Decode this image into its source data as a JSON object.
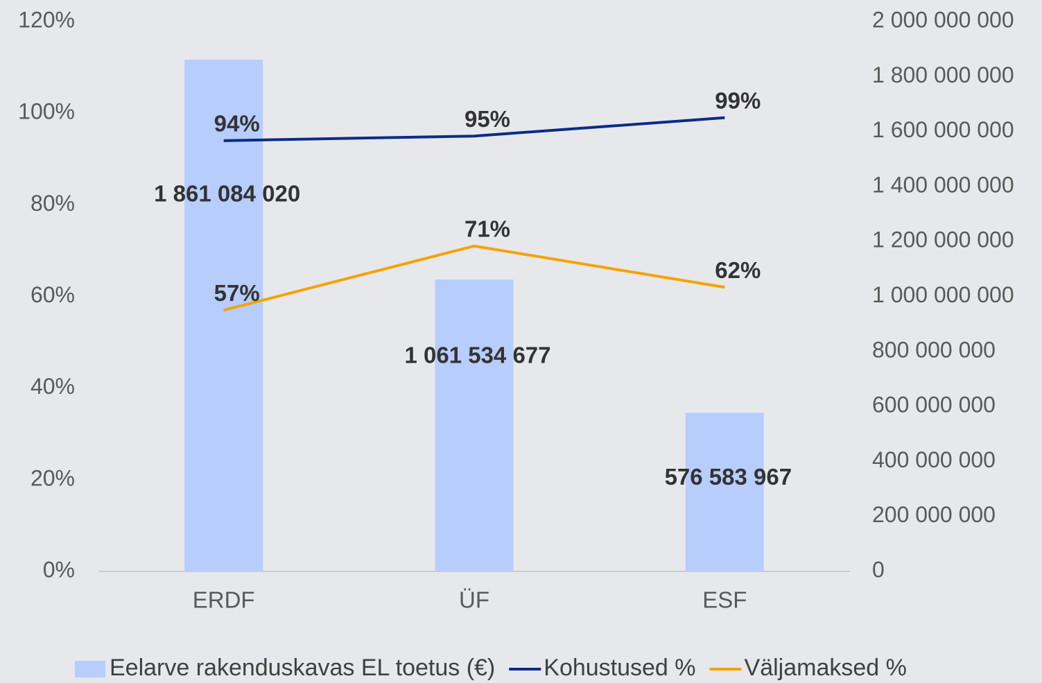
{
  "chart_data": {
    "type": "combo",
    "categories": [
      "ERDF",
      "ÜF",
      "ESF"
    ],
    "series": [
      {
        "name": "Eelarve rakenduskavas EL toetus (€)",
        "type": "bar",
        "axis": "y2",
        "color": "#b7cdfc",
        "values": [
          1861084020,
          1061534677,
          576583967
        ],
        "value_labels": [
          "1 861 084 020",
          "1 061 534 677",
          "576 583 967"
        ]
      },
      {
        "name": "Kohustused %",
        "type": "line",
        "axis": "y",
        "color": "#0a2c86",
        "values": [
          94,
          95,
          99
        ],
        "value_labels": [
          "94%",
          "95%",
          "99%"
        ]
      },
      {
        "name": "Väljamaksed %",
        "type": "line",
        "axis": "y",
        "color": "#f5a300",
        "values": [
          57,
          71,
          62
        ],
        "value_labels": [
          "57%",
          "71%",
          "62%"
        ]
      }
    ],
    "ylim": [
      0,
      120
    ],
    "yticks": [
      {
        "value": 0,
        "label": "0%"
      },
      {
        "value": 20,
        "label": "20%"
      },
      {
        "value": 40,
        "label": "40%"
      },
      {
        "value": 60,
        "label": "60%"
      },
      {
        "value": 80,
        "label": "80%"
      },
      {
        "value": 100,
        "label": "100%"
      },
      {
        "value": 120,
        "label": "120%"
      }
    ],
    "y2lim": [
      0,
      2000000000
    ],
    "y2ticks": [
      0,
      {
        "value": 200000000,
        "label": "200 000 000"
      },
      {
        "value": 400000000,
        "label": "400 000 000"
      },
      {
        "value": 600000000,
        "label": "600 000 000"
      },
      {
        "value": 800000000,
        "label": "800 000 000"
      },
      {
        "value": 1000000000,
        "label": "1 000 000 000"
      },
      {
        "value": 1200000000,
        "label": "1 200 000 000"
      },
      {
        "value": 1400000000,
        "label": "1 400 000 000"
      },
      {
        "value": 1600000000,
        "label": "1 600 000 000"
      },
      {
        "value": 1800000000,
        "label": "1 800 000 000"
      },
      {
        "value": 2000000000,
        "label": "2 000 000 000"
      }
    ],
    "grid": false,
    "legend": "bottom"
  }
}
